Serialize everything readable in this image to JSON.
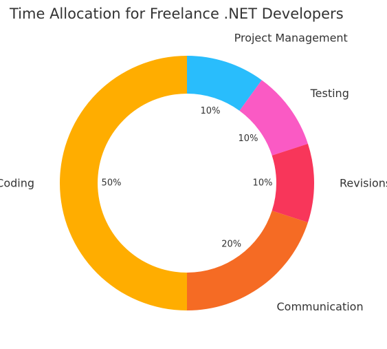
{
  "chart_data": {
    "type": "pie",
    "variant": "donut",
    "title": "Time Allocation for Freelance .NET Developers",
    "start_angle_deg": 90,
    "direction": "clockwise",
    "slices": [
      {
        "label": "Project Management",
        "value": 10,
        "pct_label": "10%",
        "color": "#29BDFC"
      },
      {
        "label": "Testing",
        "value": 10,
        "pct_label": "10%",
        "color": "#FA5AC4"
      },
      {
        "label": "Revisions",
        "value": 10,
        "pct_label": "10%",
        "color": "#F8365A"
      },
      {
        "label": "Communication",
        "value": 20,
        "pct_label": "20%",
        "color": "#F56B24"
      },
      {
        "label": "Coding",
        "value": 50,
        "pct_label": "50%",
        "color": "#FFAD00"
      }
    ]
  }
}
